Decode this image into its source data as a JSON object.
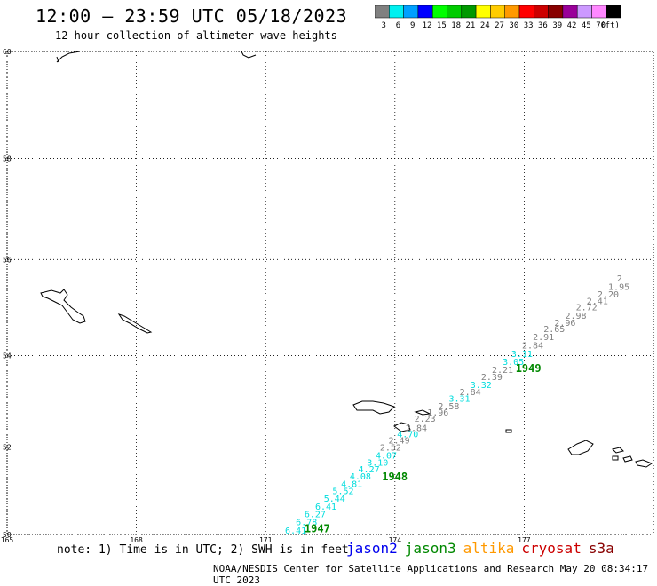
{
  "header": {
    "title": "12:00 – 23:59 UTC 05/18/2023",
    "subtitle": "12 hour collection of altimeter wave heights"
  },
  "colorbar": {
    "bins": [
      {
        "color": "#808080",
        "label": "3"
      },
      {
        "color": "#00f0f0",
        "label": "6"
      },
      {
        "color": "#00a0ff",
        "label": "9"
      },
      {
        "color": "#0000ff",
        "label": "12"
      },
      {
        "color": "#00ff00",
        "label": "15"
      },
      {
        "color": "#00cc00",
        "label": "18"
      },
      {
        "color": "#009900",
        "label": "21"
      },
      {
        "color": "#ffff00",
        "label": "24"
      },
      {
        "color": "#ffcc00",
        "label": "27"
      },
      {
        "color": "#ff9900",
        "label": "30"
      },
      {
        "color": "#ff0000",
        "label": "33"
      },
      {
        "color": "#cc0000",
        "label": "36"
      },
      {
        "color": "#880000",
        "label": "39"
      },
      {
        "color": "#990099",
        "label": "42"
      },
      {
        "color": "#cc99ff",
        "label": "45"
      },
      {
        "color": "#ff88ff",
        "label": "70"
      },
      {
        "color": "#000000",
        "label": ""
      }
    ],
    "unit": "(ft)"
  },
  "map": {
    "lat_labels": [
      "60",
      "58",
      "56",
      "54",
      "52",
      "50"
    ],
    "lon_labels": [
      "165",
      "168",
      "171",
      "174",
      "177"
    ],
    "time_labels": [
      {
        "text": "1947",
        "lon": 171.9,
        "lat": 50.05
      },
      {
        "text": "1948",
        "lon": 173.7,
        "lat": 51.25
      },
      {
        "text": "1949",
        "lon": 176.8,
        "lat": 53.65
      }
    ],
    "readings": [
      {
        "v": "6.41",
        "lon": 171.45,
        "lat": 50.02,
        "c": "#00dddd"
      },
      {
        "v": "6.78",
        "lon": 171.7,
        "lat": 50.22,
        "c": "#00dddd"
      },
      {
        "v": "6.27",
        "lon": 171.9,
        "lat": 50.4,
        "c": "#00dddd"
      },
      {
        "v": "6.41",
        "lon": 172.15,
        "lat": 50.58,
        "c": "#00dddd"
      },
      {
        "v": "5.44",
        "lon": 172.35,
        "lat": 50.76,
        "c": "#00dddd"
      },
      {
        "v": "5.52",
        "lon": 172.55,
        "lat": 50.93,
        "c": "#00dddd"
      },
      {
        "v": "4.81",
        "lon": 172.75,
        "lat": 51.1,
        "c": "#00dddd"
      },
      {
        "v": "4.08",
        "lon": 172.95,
        "lat": 51.27,
        "c": "#00dddd"
      },
      {
        "v": "4.27",
        "lon": 173.15,
        "lat": 51.43,
        "c": "#00dddd"
      },
      {
        "v": "3.10",
        "lon": 173.35,
        "lat": 51.58,
        "c": "#00dddd"
      },
      {
        "v": "4.07",
        "lon": 173.55,
        "lat": 51.74,
        "c": "#00dddd"
      },
      {
        "v": "2.52",
        "lon": 173.65,
        "lat": 51.92,
        "c": "#808080"
      },
      {
        "v": "2.49",
        "lon": 173.85,
        "lat": 52.08,
        "c": "#808080"
      },
      {
        "v": "4.70",
        "lon": 174.05,
        "lat": 52.22,
        "c": "#00dddd"
      },
      {
        "v": "2.84",
        "lon": 174.25,
        "lat": 52.36,
        "c": "#808080"
      },
      {
        "v": "2.23",
        "lon": 174.45,
        "lat": 52.56,
        "c": "#808080"
      },
      {
        "v": "1.96",
        "lon": 174.75,
        "lat": 52.7,
        "c": "#808080"
      },
      {
        "v": "2.58",
        "lon": 175.0,
        "lat": 52.84,
        "c": "#808080"
      },
      {
        "v": "3.31",
        "lon": 175.25,
        "lat": 53.0,
        "c": "#00dddd"
      },
      {
        "v": "2.84",
        "lon": 175.5,
        "lat": 53.15,
        "c": "#808080"
      },
      {
        "v": "3.32",
        "lon": 175.75,
        "lat": 53.3,
        "c": "#00dddd"
      },
      {
        "v": "2.39",
        "lon": 176.0,
        "lat": 53.47,
        "c": "#808080"
      },
      {
        "v": "2.21",
        "lon": 176.25,
        "lat": 53.63,
        "c": "#808080"
      },
      {
        "v": "3.05",
        "lon": 176.5,
        "lat": 53.8,
        "c": "#00dddd"
      },
      {
        "v": "3.11",
        "lon": 176.7,
        "lat": 53.97,
        "c": "#00dddd"
      },
      {
        "v": "2.84",
        "lon": 176.95,
        "lat": 54.15,
        "c": "#808080"
      },
      {
        "v": "2.91",
        "lon": 177.2,
        "lat": 54.33,
        "c": "#808080"
      },
      {
        "v": "2.65",
        "lon": 177.45,
        "lat": 54.5,
        "c": "#808080"
      },
      {
        "v": "2.96",
        "lon": 177.7,
        "lat": 54.63,
        "c": "#808080"
      },
      {
        "v": "2.98",
        "lon": 177.95,
        "lat": 54.78,
        "c": "#808080"
      },
      {
        "v": "2.72",
        "lon": 178.2,
        "lat": 54.95,
        "c": "#808080"
      },
      {
        "v": "2.41",
        "lon": 178.45,
        "lat": 55.08,
        "c": "#808080"
      },
      {
        "v": "2.20",
        "lon": 178.7,
        "lat": 55.22,
        "c": "#808080"
      },
      {
        "v": "1.95",
        "lon": 178.95,
        "lat": 55.38,
        "c": "#808080"
      },
      {
        "v": "2",
        "lon": 179.15,
        "lat": 55.55,
        "c": "#808080"
      }
    ]
  },
  "note": "note: 1) Time is in UTC; 2) SWH is in feet",
  "satellites": [
    {
      "name": "jason2",
      "color": "#0000ee"
    },
    {
      "name": "jason3",
      "color": "#008800"
    },
    {
      "name": "altika",
      "color": "#ff9900"
    },
    {
      "name": "cryosat",
      "color": "#cc0000"
    },
    {
      "name": "s3a",
      "color": "#880000"
    }
  ],
  "footer": "NOAA/NESDIS Center for Satellite Applications and Research    May 20 08:34:17 UTC 2023"
}
